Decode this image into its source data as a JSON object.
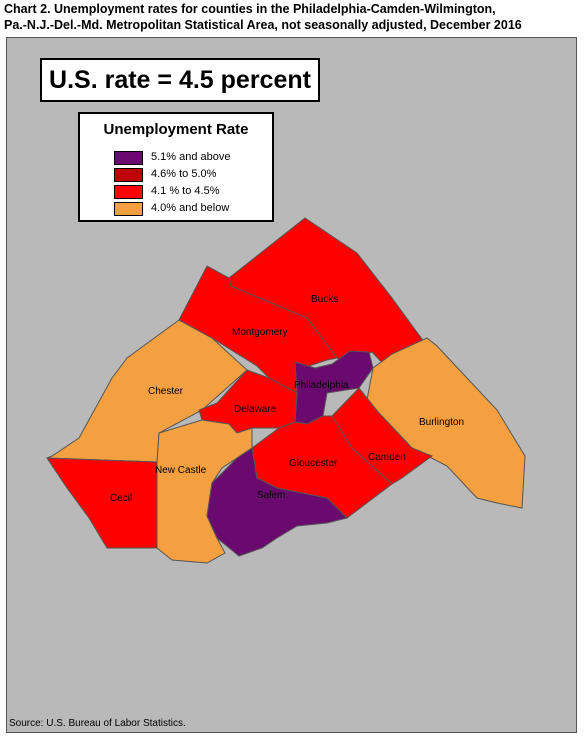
{
  "title": {
    "line1": "Chart 2. Unemployment rates for counties in the Philadelphia-Camden-Wilmington,",
    "line2": "Pa.-N.J.-Del.-Md. Metropolitan Statistical Area, not seasonally adjusted, December 2016"
  },
  "rate_box": "U.S. rate = 4.5 percent",
  "legend": {
    "title": "Unemployment Rate",
    "items": [
      {
        "label": "5.1% and above",
        "color": "#6a0a6e"
      },
      {
        "label": "4.6% to 5.0%",
        "color": "#c00000"
      },
      {
        "label": "4.1 % to 4.5%",
        "color": "#ff0000"
      },
      {
        "label": "4.0% and below",
        "color": "#f5a040"
      }
    ]
  },
  "counties": [
    {
      "name": "Bucks",
      "category": "4.1 % to 4.5%"
    },
    {
      "name": "Montgomery",
      "category": "4.1 % to 4.5%"
    },
    {
      "name": "Chester",
      "category": "4.0% and below"
    },
    {
      "name": "Philadelphia",
      "category": "5.1% and above"
    },
    {
      "name": "Delaware",
      "category": "4.1 % to 4.5%"
    },
    {
      "name": "Burlington",
      "category": "4.0% and below"
    },
    {
      "name": "Camden",
      "category": "4.1 % to 4.5%"
    },
    {
      "name": "Gloucester",
      "category": "4.1 % to 4.5%"
    },
    {
      "name": "New Castle",
      "category": "4.0% and below"
    },
    {
      "name": "Cecil",
      "category": "4.1 % to 4.5%"
    },
    {
      "name": "Salem",
      "category": "5.1% and above"
    }
  ],
  "source": "Source: U.S. Bureau of Labor Statistics.",
  "colors": {
    "background": "#b9b9b9",
    "border": "#555555"
  }
}
